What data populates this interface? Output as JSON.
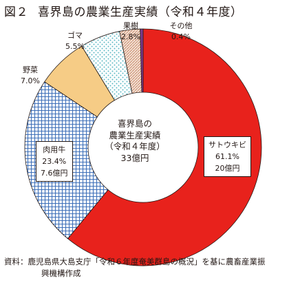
{
  "title": {
    "figure": "図２",
    "text": "喜界島の農業生産実績（令和４年度）"
  },
  "center_label": {
    "line1": "喜界島の",
    "line2": "農業生産実績",
    "line3": "（令和４年度）",
    "line4": "33億円"
  },
  "chart_data": {
    "type": "pie",
    "variant": "donut",
    "title": "喜界島の農業生産実績（令和４年度）",
    "total": "33億円",
    "unit": "%",
    "slices": [
      {
        "label": "サトウキビ",
        "value": 61.1,
        "value_text": "61.1%",
        "amount": "20億円",
        "color": "#e8221c",
        "pattern": "solid"
      },
      {
        "label": "肉用牛",
        "value": 23.4,
        "value_text": "23.4%",
        "amount": "7.6億円",
        "color": "#3d6fb8",
        "pattern": "grid"
      },
      {
        "label": "野菜",
        "value": 7.0,
        "value_text": "7.0%",
        "color": "#f6cc86",
        "pattern": "solid"
      },
      {
        "label": "ゴマ",
        "value": 5.5,
        "value_text": "5.5%",
        "color": "#5cb8c4",
        "pattern": "dots"
      },
      {
        "label": "果樹",
        "value": 2.8,
        "value_text": "2.8%",
        "color": "#c98a6a",
        "pattern": "diagonal"
      },
      {
        "label": "その他",
        "value": 0.4,
        "value_text": "0.4%",
        "color": "#7b3b8c",
        "pattern": "solid"
      }
    ],
    "start": "top",
    "direction": "clockwise"
  },
  "source": {
    "line1": "資料：鹿児島県大島支庁「令和６年度奄美群島の概況」を基に農畜産業振",
    "line2": "興機構作成"
  }
}
